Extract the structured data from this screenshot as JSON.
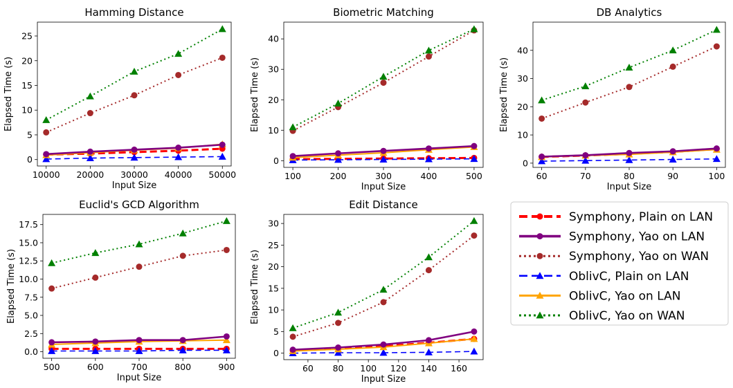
{
  "styles": [
    {
      "color": "#ff0000",
      "dash": "10,5",
      "marker": "circle",
      "width": 3
    },
    {
      "color": "#800080",
      "dash": "",
      "marker": "circle",
      "width": 2.6
    },
    {
      "color": "#a52a2a",
      "dash": "2,4",
      "marker": "circle",
      "width": 2
    },
    {
      "color": "#0000ff",
      "dash": "8,5",
      "marker": "triangle",
      "width": 1.6
    },
    {
      "color": "#ffa500",
      "dash": "",
      "marker": "triangle",
      "width": 2
    },
    {
      "color": "#008000",
      "dash": "2,4",
      "marker": "triangle",
      "width": 2
    }
  ],
  "legend": {
    "entries": [
      "Symphony, Plain on LAN",
      "Symphony, Yao on LAN",
      "Symphony, Yao on WAN",
      "OblivC, Plain on LAN",
      "OblivC, Yao on LAN",
      "OblivC, Yao on WAN"
    ]
  },
  "chart_data": [
    {
      "type": "line",
      "title": "Hamming Distance",
      "xlabel": "Input Size",
      "ylabel": "Elapsed Time (s)",
      "x": [
        10000,
        20000,
        30000,
        40000,
        50000
      ],
      "xticks": [
        10000,
        20000,
        30000,
        40000,
        50000
      ],
      "yticks": [
        0,
        5,
        10,
        15,
        20,
        25
      ],
      "ytick_labels": [
        "0",
        "5",
        "10",
        "15",
        "20",
        "25"
      ],
      "xlim": [
        8000,
        52000
      ],
      "ylim": [
        -1.3,
        27.8
      ],
      "series": [
        {
          "name": "Symphony, Plain on LAN",
          "values": [
            1.0,
            1.2,
            1.5,
            1.8,
            2.2
          ]
        },
        {
          "name": "Symphony, Yao on LAN",
          "values": [
            1.1,
            1.6,
            2.0,
            2.4,
            3.0
          ]
        },
        {
          "name": "Symphony, Yao on WAN",
          "values": [
            5.5,
            9.4,
            13.0,
            17.1,
            20.6
          ]
        },
        {
          "name": "OblivC, Plain on LAN",
          "values": [
            0.1,
            0.3,
            0.4,
            0.5,
            0.6
          ]
        },
        {
          "name": "OblivC, Yao on LAN",
          "values": [
            0.9,
            1.4,
            1.9,
            2.3,
            3.1
          ]
        },
        {
          "name": "OblivC, Yao on WAN",
          "values": [
            8.0,
            12.8,
            17.8,
            21.4,
            26.4
          ]
        }
      ]
    },
    {
      "type": "line",
      "title": "Biometric Matching",
      "xlabel": "Input Size",
      "ylabel": "Elapsed Time (s)",
      "x": [
        100,
        200,
        300,
        400,
        500
      ],
      "xticks": [
        100,
        200,
        300,
        400,
        500
      ],
      "yticks": [
        0,
        10,
        20,
        30,
        40
      ],
      "ytick_labels": [
        "0",
        "10",
        "20",
        "30",
        "40"
      ],
      "xlim": [
        80,
        520
      ],
      "ylim": [
        -2.2,
        45.5
      ],
      "series": [
        {
          "name": "Symphony, Plain on LAN",
          "values": [
            0.5,
            0.6,
            0.7,
            0.8,
            0.9
          ]
        },
        {
          "name": "Symphony, Yao on LAN",
          "values": [
            1.5,
            2.4,
            3.2,
            4.0,
            4.8
          ]
        },
        {
          "name": "Symphony, Yao on WAN",
          "values": [
            9.8,
            17.6,
            25.6,
            34.2,
            42.8
          ]
        },
        {
          "name": "OblivC, Plain on LAN",
          "values": [
            0.2,
            0.3,
            0.4,
            0.5,
            0.6
          ]
        },
        {
          "name": "OblivC, Yao on LAN",
          "values": [
            1.0,
            1.8,
            2.6,
            3.6,
            4.5
          ]
        },
        {
          "name": "OblivC, Yao on WAN",
          "values": [
            11.0,
            18.8,
            27.6,
            36.2,
            43.2
          ]
        }
      ]
    },
    {
      "type": "line",
      "title": "DB Analytics",
      "xlabel": "Input Size",
      "ylabel": "Elapsed Time (s)",
      "x": [
        60,
        70,
        80,
        90,
        100
      ],
      "xticks": [
        60,
        70,
        80,
        90,
        100
      ],
      "yticks": [
        0,
        10,
        20,
        30,
        40
      ],
      "ytick_labels": [
        "0",
        "10",
        "20",
        "30",
        "40"
      ],
      "xlim": [
        58,
        102
      ],
      "ylim": [
        -1.5,
        50.0
      ],
      "series": [
        {
          "name": "Symphony, Plain on LAN",
          "values": [
            2.2,
            2.7,
            3.3,
            4.0,
            5.0
          ]
        },
        {
          "name": "Symphony, Yao on LAN",
          "values": [
            2.3,
            2.8,
            3.6,
            4.2,
            5.2
          ]
        },
        {
          "name": "Symphony, Yao on WAN",
          "values": [
            15.8,
            21.5,
            27.0,
            34.2,
            41.4
          ]
        },
        {
          "name": "OblivC, Plain on LAN",
          "values": [
            0.7,
            0.9,
            1.1,
            1.3,
            1.5
          ]
        },
        {
          "name": "OblivC, Yao on LAN",
          "values": [
            2.2,
            2.7,
            3.1,
            3.9,
            4.8
          ]
        },
        {
          "name": "OblivC, Yao on WAN",
          "values": [
            22.3,
            27.3,
            33.9,
            40.0,
            47.3
          ]
        }
      ]
    },
    {
      "type": "line",
      "title": "Euclid's GCD Algorithm",
      "xlabel": "Input Size",
      "ylabel": "Elapsed Time (s)",
      "x": [
        500,
        600,
        700,
        800,
        900
      ],
      "xticks": [
        500,
        600,
        700,
        800,
        900
      ],
      "yticks": [
        0,
        2.5,
        5,
        7.5,
        10,
        12.5,
        15,
        17.5
      ],
      "ytick_labels": [
        "0.0",
        "2.5",
        "5.0",
        "7.5",
        "10.0",
        "12.5",
        "15.0",
        "17.5"
      ],
      "xlim": [
        480,
        920
      ],
      "ylim": [
        -0.9,
        18.9
      ],
      "series": [
        {
          "name": "Symphony, Plain on LAN",
          "values": [
            0.4,
            0.4,
            0.4,
            0.4,
            0.4
          ]
        },
        {
          "name": "Symphony, Yao on LAN",
          "values": [
            1.3,
            1.4,
            1.6,
            1.6,
            2.1
          ]
        },
        {
          "name": "Symphony, Yao on WAN",
          "values": [
            8.7,
            10.2,
            11.7,
            13.2,
            14.0
          ]
        },
        {
          "name": "OblivC, Plain on LAN",
          "values": [
            0.1,
            0.1,
            0.1,
            0.2,
            0.2
          ]
        },
        {
          "name": "OblivC, Yao on LAN",
          "values": [
            1.0,
            1.2,
            1.4,
            1.5,
            1.6
          ]
        },
        {
          "name": "OblivC, Yao on WAN",
          "values": [
            12.2,
            13.6,
            14.8,
            16.3,
            18.0
          ]
        }
      ]
    },
    {
      "type": "line",
      "title": "Edit Distance",
      "xlabel": "Input Size",
      "ylabel": "Elapsed Time (s)",
      "x": [
        50,
        80,
        110,
        140,
        170
      ],
      "xticks": [
        60,
        80,
        100,
        120,
        140,
        160
      ],
      "yticks": [
        0,
        5,
        10,
        15,
        20,
        25,
        30
      ],
      "ytick_labels": [
        "0",
        "5",
        "10",
        "15",
        "20",
        "25",
        "30"
      ],
      "xlim": [
        44,
        176
      ],
      "ylim": [
        -1.5,
        32.1
      ],
      "series": [
        {
          "name": "Symphony, Plain on LAN",
          "values": [
            0.6,
            1.0,
            1.6,
            2.4,
            3.3
          ]
        },
        {
          "name": "Symphony, Yao on LAN",
          "values": [
            0.8,
            1.3,
            2.0,
            3.0,
            5.0
          ]
        },
        {
          "name": "Symphony, Yao on WAN",
          "values": [
            3.8,
            7.0,
            11.8,
            19.2,
            27.2
          ]
        },
        {
          "name": "OblivC, Plain on LAN",
          "values": [
            0.0,
            0.1,
            0.1,
            0.2,
            0.4
          ]
        },
        {
          "name": "OblivC, Yao on LAN",
          "values": [
            0.5,
            0.9,
            1.4,
            2.3,
            3.3
          ]
        },
        {
          "name": "OblivC, Yao on WAN",
          "values": [
            5.8,
            9.4,
            14.7,
            22.2,
            30.6
          ]
        }
      ]
    }
  ]
}
